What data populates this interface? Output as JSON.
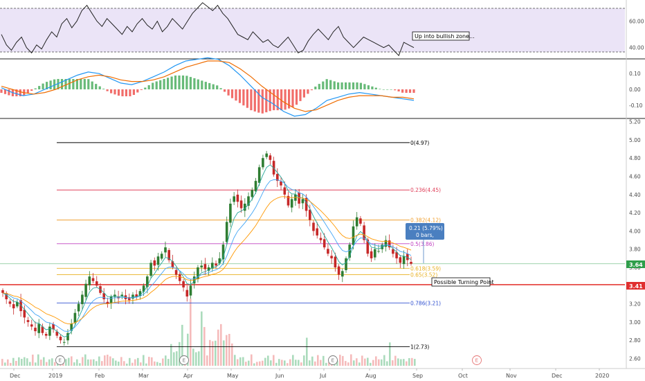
{
  "chart_data": {
    "type": "candlestick",
    "x_axis_labels": [
      "Dec",
      "2019",
      "Feb",
      "Mar",
      "Apr",
      "May",
      "Jun",
      "Jul",
      "Aug",
      "Sep",
      "Oct",
      "Nov",
      "Dec",
      "2020"
    ],
    "price_panel": {
      "ylim": [
        2.52,
        5.22
      ],
      "y_ticks": [
        "5.20",
        "5.00",
        "4.80",
        "4.60",
        "4.40",
        "4.20",
        "4.00",
        "3.80",
        "3.60",
        "3.20",
        "3.00",
        "2.80",
        "2.60"
      ],
      "last_price_tag": "3.64",
      "support_tag": "3.41",
      "support_level": 3.41,
      "fib_levels": [
        {
          "label": "0(4.97)",
          "value": 4.97,
          "color": "#000000"
        },
        {
          "label": "0.236(4.45)",
          "value": 4.45,
          "color": "#e0405a"
        },
        {
          "label": "0.382(4.12)",
          "value": 4.12,
          "color": "#f0a030"
        },
        {
          "label": "0.5(3.86)",
          "value": 3.86,
          "color": "#c040c0"
        },
        {
          "label": "0.618(3.59)",
          "value": 3.59,
          "color": "#e8b020"
        },
        {
          "label": "0.65(3.52)",
          "value": 3.52,
          "color": "#e8b020"
        },
        {
          "label": "0.786(3.21)",
          "value": 3.21,
          "color": "#3050d0"
        },
        {
          "label": "1(2.73)",
          "value": 2.73,
          "color": "#000000"
        }
      ],
      "close_series": [
        3.32,
        3.25,
        3.2,
        3.15,
        3.22,
        3.12,
        3.05,
        3.0,
        2.95,
        2.9,
        2.98,
        2.88,
        2.85,
        2.95,
        2.92,
        2.85,
        2.8,
        2.78,
        2.88,
        2.98,
        3.1,
        3.2,
        3.3,
        3.42,
        3.5,
        3.45,
        3.4,
        3.32,
        3.25,
        3.2,
        3.28,
        3.3,
        3.26,
        3.3,
        3.25,
        3.24,
        3.3,
        3.28,
        3.34,
        3.4,
        3.5,
        3.65,
        3.62,
        3.72,
        3.75,
        3.82,
        3.68,
        3.6,
        3.52,
        3.45,
        3.38,
        3.28,
        3.4,
        3.5,
        3.6,
        3.62,
        3.58,
        3.6,
        3.65,
        3.62,
        3.7,
        3.85,
        4.1,
        4.3,
        4.38,
        4.32,
        4.25,
        4.3,
        4.38,
        4.45,
        4.55,
        4.7,
        4.8,
        4.85,
        4.78,
        4.62,
        4.55,
        4.5,
        4.4,
        4.28,
        4.35,
        4.4,
        4.3,
        4.35,
        4.22,
        4.12,
        4.0,
        3.95,
        3.9,
        3.82,
        3.75,
        3.7,
        3.6,
        3.52,
        3.56,
        3.7,
        3.85,
        4.05,
        4.15,
        4.08,
        3.9,
        3.75,
        3.7,
        3.8,
        3.78,
        3.85,
        3.9,
        3.82,
        3.75,
        3.7,
        3.65,
        3.72,
        3.68,
        3.64
      ],
      "annotations": [
        "Possible Turning Point"
      ],
      "measure_box": [
        "0.21 (5.79%) 21",
        "0 bars,"
      ]
    },
    "rsi_panel": {
      "ylim": [
        32,
        75
      ],
      "y_ticks": [
        "60.00",
        "40.00"
      ],
      "upper_band": 70,
      "lower_band": 30,
      "annotation": "Up into bullish zone...",
      "values": [
        50,
        42,
        38,
        44,
        48,
        40,
        36,
        42,
        39,
        46,
        52,
        48,
        58,
        62,
        55,
        60,
        68,
        72,
        66,
        60,
        56,
        62,
        58,
        54,
        50,
        56,
        52,
        58,
        62,
        57,
        54,
        60,
        52,
        56,
        62,
        58,
        54,
        60,
        66,
        70,
        74,
        71,
        68,
        72,
        66,
        62,
        56,
        50,
        48,
        46,
        52,
        48,
        44,
        46,
        42,
        40,
        44,
        48,
        42,
        36,
        38,
        45,
        50,
        54,
        50,
        46,
        52,
        56,
        48,
        44,
        40,
        44,
        48,
        46,
        44,
        42,
        40,
        42,
        38,
        34,
        44,
        42,
        40
      ]
    },
    "macd_panel": {
      "ylim": [
        -0.18,
        0.18
      ],
      "y_ticks": [
        "0.10",
        "0.00",
        "-0.10"
      ],
      "macd": [
        0.01,
        -0.02,
        -0.04,
        -0.03,
        0.0,
        0.03,
        0.06,
        0.09,
        0.11,
        0.1,
        0.07,
        0.04,
        0.03,
        0.05,
        0.08,
        0.11,
        0.15,
        0.18,
        0.19,
        0.2,
        0.19,
        0.15,
        0.09,
        0.02,
        -0.05,
        -0.09,
        -0.14,
        -0.17,
        -0.16,
        -0.12,
        -0.07,
        -0.05,
        -0.03,
        -0.02,
        -0.03,
        -0.04,
        -0.05,
        -0.06,
        -0.07
      ],
      "signal": [
        0.02,
        0.0,
        -0.02,
        -0.03,
        -0.02,
        0.0,
        0.03,
        0.06,
        0.08,
        0.09,
        0.08,
        0.06,
        0.05,
        0.05,
        0.06,
        0.08,
        0.11,
        0.14,
        0.16,
        0.18,
        0.18,
        0.17,
        0.13,
        0.08,
        0.02,
        -0.03,
        -0.08,
        -0.12,
        -0.14,
        -0.13,
        -0.1,
        -0.07,
        -0.05,
        -0.04,
        -0.04,
        -0.04,
        -0.05,
        -0.05,
        -0.06
      ]
    },
    "earnings_markers": [
      "E",
      "E",
      "E",
      "E"
    ]
  }
}
